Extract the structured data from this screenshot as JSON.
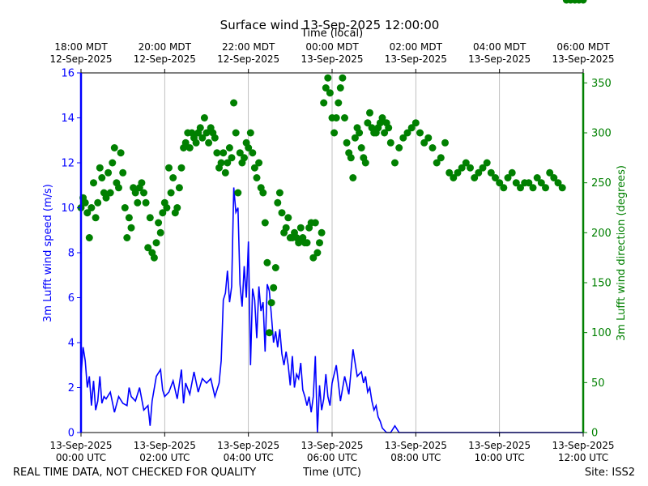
{
  "chart_data": {
    "type": "line",
    "title": "Surface wind 13-Sep-2025 12:00:00",
    "top_axis_label": "Time (local)",
    "bottom_axis_label": "Time (UTC)",
    "left_axis_label": "3m Lufft wind speed (m/s)",
    "right_axis_label": "3m Lufft wind direction (degrees)",
    "footer_left": "REAL TIME DATA, NOT CHECKED FOR QUALITY",
    "footer_right": "Site: ISS2",
    "grid": "vertical",
    "xlim_hours_utc": [
      0,
      12
    ],
    "left_ylim": [
      0,
      16
    ],
    "right_ylim": [
      0,
      360
    ],
    "left_yticks": [
      "0",
      "2",
      "4",
      "6",
      "8",
      "10",
      "12",
      "14",
      "16"
    ],
    "right_yticks": [
      "0",
      "50",
      "100",
      "150",
      "200",
      "250",
      "300",
      "350"
    ],
    "bottom_ticks": [
      {
        "hour": 0,
        "date": "13-Sep-2025",
        "time": "00:00 UTC"
      },
      {
        "hour": 2,
        "date": "13-Sep-2025",
        "time": "02:00 UTC"
      },
      {
        "hour": 4,
        "date": "13-Sep-2025",
        "time": "04:00 UTC"
      },
      {
        "hour": 6,
        "date": "13-Sep-2025",
        "time": "06:00 UTC"
      },
      {
        "hour": 8,
        "date": "13-Sep-2025",
        "time": "08:00 UTC"
      },
      {
        "hour": 10,
        "date": "13-Sep-2025",
        "time": "10:00 UTC"
      },
      {
        "hour": 12,
        "date": "13-Sep-2025",
        "time": "12:00 UTC"
      }
    ],
    "top_ticks": [
      {
        "hour": 0,
        "time": "18:00 MDT",
        "date": "12-Sep-2025"
      },
      {
        "hour": 2,
        "time": "20:00 MDT",
        "date": "12-Sep-2025"
      },
      {
        "hour": 4,
        "time": "22:00 MDT",
        "date": "12-Sep-2025"
      },
      {
        "hour": 6,
        "time": "00:00 MDT",
        "date": "13-Sep-2025"
      },
      {
        "hour": 8,
        "time": "02:00 MDT",
        "date": "13-Sep-2025"
      },
      {
        "hour": 10,
        "time": "04:00 MDT",
        "date": "13-Sep-2025"
      },
      {
        "hour": 12,
        "time": "06:00 MDT",
        "date": "13-Sep-2025"
      }
    ],
    "series": [
      {
        "name": "3m Lufft wind speed (m/s)",
        "axis": "left",
        "style": "line",
        "color": "#0000ff",
        "x_hours_utc": [
          0.0,
          0.05,
          0.1,
          0.15,
          0.2,
          0.25,
          0.3,
          0.35,
          0.4,
          0.45,
          0.5,
          0.55,
          0.6,
          0.7,
          0.8,
          0.9,
          1.0,
          1.1,
          1.15,
          1.2,
          1.3,
          1.4,
          1.5,
          1.6,
          1.65,
          1.7,
          1.8,
          1.9,
          1.95,
          2.0,
          2.1,
          2.2,
          2.3,
          2.4,
          2.45,
          2.5,
          2.6,
          2.7,
          2.8,
          2.9,
          3.0,
          3.1,
          3.2,
          3.3,
          3.35,
          3.4,
          3.45,
          3.5,
          3.55,
          3.6,
          3.65,
          3.7,
          3.75,
          3.8,
          3.85,
          3.9,
          3.95,
          4.0,
          4.05,
          4.1,
          4.15,
          4.2,
          4.25,
          4.3,
          4.35,
          4.4,
          4.45,
          4.5,
          4.55,
          4.6,
          4.65,
          4.7,
          4.75,
          4.8,
          4.85,
          4.9,
          4.95,
          5.0,
          5.05,
          5.1,
          5.15,
          5.2,
          5.25,
          5.3,
          5.35,
          5.4,
          5.45,
          5.5,
          5.55,
          5.6,
          5.65,
          5.7,
          5.75,
          5.8,
          5.85,
          5.9,
          5.95,
          6.0,
          6.1,
          6.2,
          6.3,
          6.4,
          6.5,
          6.6,
          6.7,
          6.75,
          6.8,
          6.85,
          6.9,
          6.95,
          7.0,
          7.05,
          7.1,
          7.15,
          7.2,
          7.3,
          7.4,
          7.5,
          7.6,
          7.7,
          7.8,
          7.9,
          8.0,
          8.2,
          8.4,
          8.6,
          8.8,
          9.0,
          9.2,
          9.4,
          9.6,
          9.8,
          10.0,
          10.2,
          10.4,
          10.6,
          10.8,
          11.0,
          11.2,
          11.4,
          11.6,
          11.8,
          12.0
        ],
        "values": [
          2.5,
          3.8,
          3.2,
          2.0,
          2.5,
          1.2,
          2.3,
          1.0,
          1.4,
          2.5,
          1.3,
          1.6,
          1.5,
          1.8,
          0.9,
          1.6,
          1.3,
          1.2,
          2.0,
          1.6,
          1.4,
          2.0,
          1.0,
          1.2,
          0.3,
          1.4,
          2.5,
          2.8,
          1.9,
          1.6,
          1.8,
          2.3,
          1.5,
          2.8,
          1.3,
          2.2,
          1.7,
          2.7,
          1.8,
          2.4,
          2.2,
          2.4,
          1.6,
          2.2,
          3.2,
          5.9,
          6.2,
          7.2,
          5.8,
          6.5,
          10.9,
          9.8,
          10.0,
          6.6,
          5.6,
          7.4,
          6.0,
          8.5,
          3.0,
          6.4,
          5.9,
          4.2,
          6.5,
          5.4,
          5.8,
          3.6,
          6.6,
          6.3,
          5.2,
          4.0,
          4.5,
          3.8,
          4.6,
          3.5,
          3.0,
          3.6,
          3.0,
          2.1,
          3.4,
          2.0,
          2.6,
          2.4,
          3.1,
          1.9,
          1.6,
          1.2,
          1.6,
          0.9,
          1.6,
          3.4,
          0.0,
          2.1,
          1.0,
          1.5,
          2.6,
          1.6,
          1.2,
          2.2,
          3.0,
          1.4,
          2.5,
          1.7,
          3.7,
          2.5,
          2.7,
          2.2,
          2.5,
          1.8,
          2.0,
          1.4,
          1.0,
          1.2,
          0.7,
          0.5,
          0.2,
          0.0,
          0.0,
          0.3,
          0.0,
          0.0,
          0.0,
          0.0,
          0.0,
          0.0,
          0.0,
          0.0,
          0.0,
          0.0,
          0.0,
          0.0,
          0.0,
          0.0,
          0.0,
          0.0,
          0.0,
          0.0,
          0.0,
          0.0,
          0.0,
          0.0,
          0.0,
          0.0,
          0.0,
          0.0,
          0.0
        ]
      },
      {
        "name": "3m Lufft wind direction (degrees)",
        "axis": "right",
        "style": "markers",
        "color": "#008000",
        "x_hours_utc": [
          0.0,
          0.05,
          0.1,
          0.15,
          0.2,
          0.25,
          0.3,
          0.35,
          0.4,
          0.45,
          0.5,
          0.55,
          0.6,
          0.65,
          0.7,
          0.75,
          0.8,
          0.85,
          0.9,
          0.95,
          1.0,
          1.05,
          1.1,
          1.15,
          1.2,
          1.25,
          1.3,
          1.35,
          1.4,
          1.45,
          1.5,
          1.55,
          1.6,
          1.65,
          1.7,
          1.75,
          1.8,
          1.85,
          1.9,
          1.95,
          2.0,
          2.05,
          2.1,
          2.15,
          2.2,
          2.25,
          2.3,
          2.35,
          2.4,
          2.45,
          2.5,
          2.55,
          2.6,
          2.65,
          2.7,
          2.75,
          2.8,
          2.85,
          2.9,
          2.95,
          3.0,
          3.05,
          3.1,
          3.15,
          3.2,
          3.25,
          3.3,
          3.35,
          3.4,
          3.45,
          3.5,
          3.55,
          3.6,
          3.65,
          3.7,
          3.75,
          3.8,
          3.85,
          3.9,
          3.95,
          4.0,
          4.05,
          4.1,
          4.15,
          4.2,
          4.25,
          4.3,
          4.35,
          4.4,
          4.45,
          4.5,
          4.55,
          4.6,
          4.65,
          4.7,
          4.75,
          4.8,
          4.85,
          4.9,
          4.95,
          5.0,
          5.05,
          5.1,
          5.15,
          5.2,
          5.25,
          5.3,
          5.35,
          5.4,
          5.45,
          5.5,
          5.55,
          5.6,
          5.65,
          5.7,
          5.75,
          5.8,
          5.85,
          5.9,
          5.95,
          6.0,
          6.05,
          6.1,
          6.15,
          6.2,
          6.25,
          6.3,
          6.35,
          6.4,
          6.45,
          6.5,
          6.55,
          6.6,
          6.65,
          6.7,
          6.75,
          6.8,
          6.85,
          6.9,
          6.95,
          7.0,
          7.05,
          7.1,
          7.15,
          7.2,
          7.25,
          7.3,
          7.35,
          7.4,
          7.5,
          7.6,
          7.7,
          7.8,
          7.9,
          8.0,
          8.1,
          8.2,
          8.3,
          8.4,
          8.5,
          8.6,
          8.7,
          8.8,
          8.9,
          9.0,
          9.1,
          9.2,
          9.3,
          9.4,
          9.5,
          9.6,
          9.7,
          9.8,
          9.9,
          10.0,
          10.1,
          10.2,
          10.3,
          10.4,
          10.5,
          10.6,
          10.7,
          10.8,
          10.9,
          11.0,
          11.1,
          11.2,
          11.3,
          11.4,
          11.5,
          11.6,
          11.7,
          11.8,
          11.9,
          12.0
        ],
        "values": [
          225,
          235,
          230,
          220,
          195,
          225,
          250,
          215,
          230,
          265,
          255,
          240,
          235,
          260,
          240,
          270,
          285,
          250,
          245,
          280,
          260,
          225,
          195,
          215,
          205,
          245,
          240,
          230,
          245,
          250,
          240,
          230,
          185,
          215,
          180,
          175,
          190,
          210,
          200,
          220,
          230,
          225,
          265,
          240,
          255,
          220,
          225,
          245,
          265,
          285,
          290,
          300,
          285,
          300,
          295,
          290,
          300,
          305,
          295,
          315,
          300,
          290,
          305,
          300,
          295,
          280,
          265,
          270,
          280,
          260,
          270,
          285,
          275,
          330,
          300,
          240,
          280,
          270,
          275,
          290,
          285,
          300,
          280,
          265,
          255,
          270,
          245,
          240,
          210,
          170,
          100,
          130,
          145,
          165,
          230,
          240,
          220,
          200,
          205,
          215,
          195,
          195,
          200,
          195,
          190,
          205,
          195,
          190,
          190,
          205,
          210,
          175,
          210,
          180,
          190,
          200,
          330,
          345,
          355,
          340,
          315,
          300,
          315,
          330,
          345,
          355,
          315,
          290,
          280,
          275,
          255,
          295,
          305,
          300,
          285,
          275,
          270,
          310,
          320,
          305,
          300,
          300,
          305,
          310,
          315,
          300,
          310,
          305,
          290,
          270,
          285,
          295,
          300,
          305,
          310,
          300,
          290,
          295,
          285,
          270,
          275,
          290,
          260,
          255,
          260,
          265,
          270,
          265,
          255,
          260,
          265,
          270,
          260,
          255,
          250,
          245,
          255,
          260,
          250,
          245,
          250,
          250,
          245,
          255,
          250,
          245,
          260,
          255,
          250,
          245
        ]
      }
    ]
  }
}
